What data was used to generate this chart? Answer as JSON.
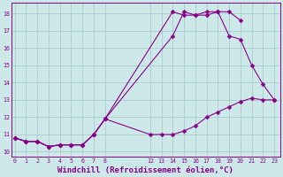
{
  "background_color": "#cce8e8",
  "grid_color": "#aacccc",
  "line_color": "#880088",
  "marker": "D",
  "marker_size": 2.5,
  "line_width": 0.8,
  "xlabel": "Windchill (Refroidissement éolien,°C)",
  "xlabel_fontsize": 6.5,
  "xticks": [
    0,
    1,
    2,
    3,
    4,
    5,
    6,
    7,
    8,
    12,
    13,
    14,
    15,
    16,
    17,
    18,
    19,
    20,
    21,
    22,
    23
  ],
  "yticks": [
    10,
    11,
    12,
    13,
    14,
    15,
    16,
    17,
    18
  ],
  "xlim": [
    -0.3,
    23.5
  ],
  "ylim": [
    9.7,
    18.6
  ],
  "lines": [
    {
      "x": [
        0,
        1,
        2,
        3,
        4,
        5,
        6,
        7,
        8,
        14,
        15,
        16,
        17,
        18,
        19,
        20
      ],
      "y": [
        10.8,
        10.6,
        10.6,
        10.3,
        10.4,
        10.4,
        10.4,
        11.0,
        11.9,
        18.1,
        17.9,
        17.9,
        18.1,
        18.1,
        18.1,
        17.6
      ]
    },
    {
      "x": [
        0,
        1,
        2,
        3,
        4,
        5,
        6,
        7,
        8,
        14,
        15,
        16,
        17,
        18,
        19,
        20,
        21,
        22,
        23
      ],
      "y": [
        10.8,
        10.6,
        10.6,
        10.3,
        10.4,
        10.4,
        10.4,
        11.0,
        11.9,
        16.7,
        18.1,
        17.9,
        17.9,
        18.1,
        16.7,
        16.5,
        15.0,
        13.9,
        13.0
      ]
    },
    {
      "x": [
        0,
        1,
        2,
        3,
        4,
        5,
        6,
        7,
        8,
        12,
        13,
        14,
        15,
        16,
        17,
        18,
        19,
        20,
        21,
        22,
        23
      ],
      "y": [
        10.8,
        10.6,
        10.6,
        10.3,
        10.4,
        10.4,
        10.4,
        11.0,
        11.9,
        11.0,
        11.0,
        11.0,
        11.2,
        11.5,
        12.0,
        12.3,
        12.6,
        12.9,
        13.1,
        13.0,
        13.0
      ]
    }
  ]
}
